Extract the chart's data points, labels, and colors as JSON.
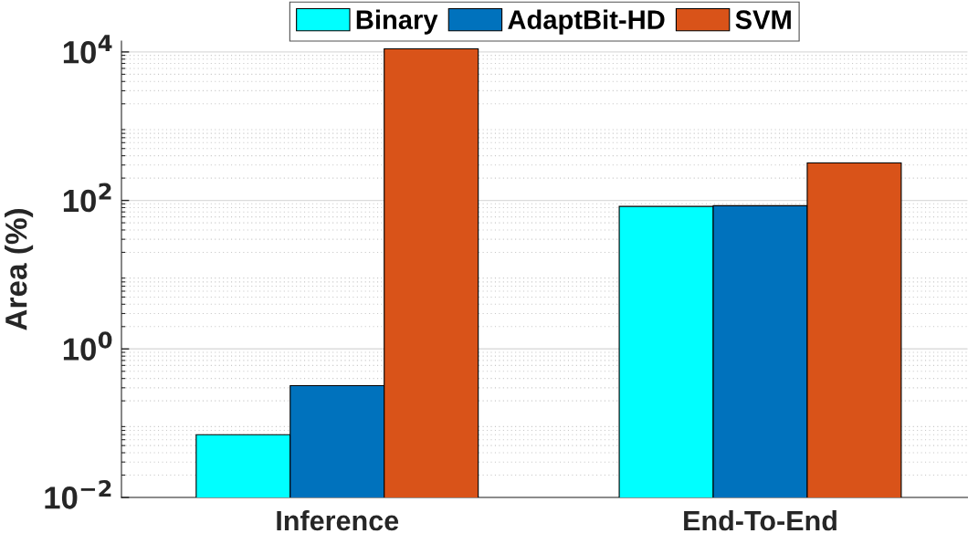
{
  "chart_data": {
    "type": "bar",
    "ylabel": "Area (%)",
    "categories": [
      "Inference",
      "End-To-End"
    ],
    "series": [
      {
        "name": "Binary",
        "color": "#00ffff",
        "values": [
          0.07,
          83
        ]
      },
      {
        "name": "AdaptBit-HD",
        "color": "#0072bd",
        "values": [
          0.32,
          85
        ]
      },
      {
        "name": "SVM",
        "color": "#d95319",
        "values": [
          11000,
          320
        ]
      }
    ],
    "log": "y",
    "ylim": [
      0.01,
      14000
    ],
    "yticks": [
      {
        "value": 0.01,
        "label": "10$^{−2}$"
      },
      {
        "value": 1,
        "label": "10$^{0}$"
      },
      {
        "value": 100,
        "label": "10$^{2}$"
      },
      {
        "value": 10000,
        "label": "10$^{4}$"
      }
    ],
    "grid": "y",
    "legend": "top"
  }
}
